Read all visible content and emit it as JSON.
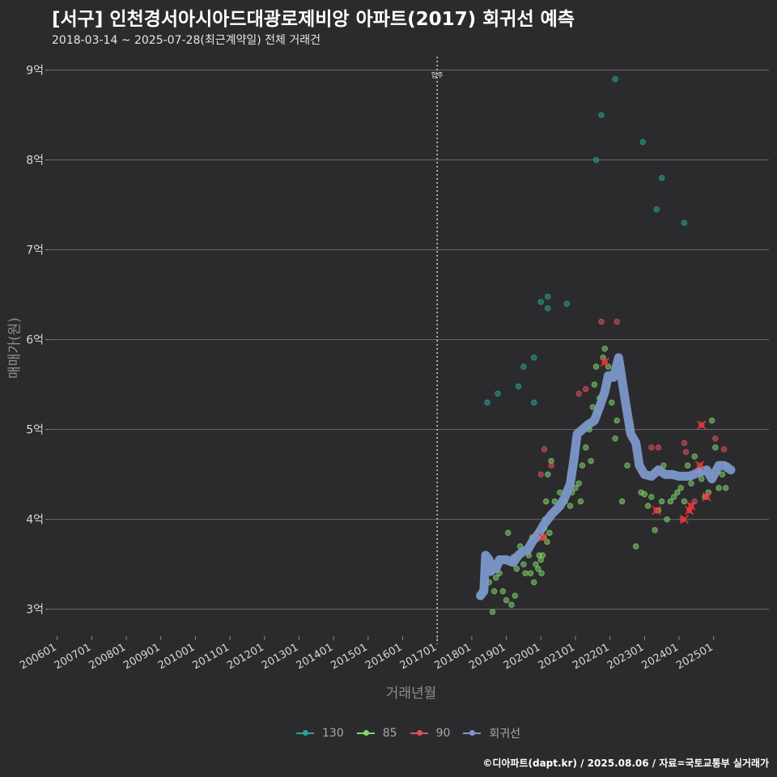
{
  "chart_data": {
    "type": "scatter",
    "title": "[서구] 인천경서아시아드대광로제비앙 아파트(2017) 회귀선 예측",
    "subtitle": "2018-03-14 ~ 2025-07-28(최근계약일) 전체 거래건",
    "xlabel": "거래년월",
    "ylabel": "매매가(원)",
    "footer": "©디아파트(dapt.kr) / 2025.08.06 / 자료=국토교통부 실거래가",
    "xlim": [
      2005.75,
      2026.6
    ],
    "ylim": [
      2.7,
      9.15
    ],
    "y_ticks": [
      {
        "value": 3,
        "label": "3억"
      },
      {
        "value": 4,
        "label": "4억"
      },
      {
        "value": 5,
        "label": "5억"
      },
      {
        "value": 6,
        "label": "6억"
      },
      {
        "value": 7,
        "label": "7억"
      },
      {
        "value": 8,
        "label": "8억"
      },
      {
        "value": 9,
        "label": "9억"
      }
    ],
    "x_ticks": [
      {
        "value": 2006,
        "label": "200601"
      },
      {
        "value": 2007,
        "label": "200701"
      },
      {
        "value": 2008,
        "label": "200801"
      },
      {
        "value": 2009,
        "label": "200901"
      },
      {
        "value": 2010,
        "label": "201001"
      },
      {
        "value": 2011,
        "label": "201101"
      },
      {
        "value": 2012,
        "label": "201201"
      },
      {
        "value": 2013,
        "label": "201301"
      },
      {
        "value": 2014,
        "label": "201401"
      },
      {
        "value": 2015,
        "label": "201501"
      },
      {
        "value": 2016,
        "label": "201601"
      },
      {
        "value": 2017,
        "label": "201701"
      },
      {
        "value": 2018,
        "label": "201801"
      },
      {
        "value": 2019,
        "label": "201901"
      },
      {
        "value": 2020,
        "label": "202001"
      },
      {
        "value": 2021,
        "label": "202101"
      },
      {
        "value": 2022,
        "label": "202201"
      },
      {
        "value": 2023,
        "label": "202301"
      },
      {
        "value": 2024,
        "label": "202401"
      },
      {
        "value": 2025,
        "label": "202501"
      }
    ],
    "annotation": {
      "x": 2017.0,
      "label": "입주"
    },
    "legend": [
      {
        "name": "130",
        "color": "#2aa198"
      },
      {
        "name": "85",
        "color": "#7fd46a"
      },
      {
        "name": "90",
        "color": "#e0505a"
      },
      {
        "name": "회귀선",
        "color": "#7b98c9"
      }
    ],
    "series": [
      {
        "name": "130",
        "color": "#2aa198",
        "points": [
          [
            2018.45,
            5.3
          ],
          [
            2018.75,
            5.4
          ],
          [
            2019.35,
            5.48
          ],
          [
            2019.5,
            5.7
          ],
          [
            2019.8,
            5.8
          ],
          [
            2019.8,
            5.3
          ],
          [
            2020.0,
            6.42
          ],
          [
            2020.2,
            6.48
          ],
          [
            2020.2,
            6.35
          ],
          [
            2020.75,
            6.4
          ],
          [
            2021.6,
            8.0
          ],
          [
            2021.75,
            8.5
          ],
          [
            2022.15,
            8.9
          ],
          [
            2022.95,
            8.2
          ],
          [
            2023.35,
            7.45
          ],
          [
            2023.5,
            7.8
          ],
          [
            2024.15,
            7.3
          ]
        ]
      },
      {
        "name": "85",
        "color": "#7fd46a",
        "points": [
          [
            2018.25,
            3.15
          ],
          [
            2018.3,
            3.2
          ],
          [
            2018.5,
            3.3
          ],
          [
            2018.6,
            2.97
          ],
          [
            2018.65,
            3.2
          ],
          [
            2018.7,
            3.35
          ],
          [
            2018.8,
            3.4
          ],
          [
            2018.9,
            3.2
          ],
          [
            2019.0,
            3.1
          ],
          [
            2019.05,
            3.85
          ],
          [
            2019.15,
            3.05
          ],
          [
            2019.2,
            3.58
          ],
          [
            2019.25,
            3.15
          ],
          [
            2019.3,
            3.45
          ],
          [
            2019.4,
            3.7
          ],
          [
            2019.5,
            3.5
          ],
          [
            2019.55,
            3.4
          ],
          [
            2019.65,
            3.6
          ],
          [
            2019.7,
            3.4
          ],
          [
            2019.75,
            3.8
          ],
          [
            2019.8,
            3.3
          ],
          [
            2019.85,
            3.5
          ],
          [
            2019.9,
            3.85
          ],
          [
            2019.92,
            3.45
          ],
          [
            2019.95,
            3.6
          ],
          [
            2020.0,
            3.55
          ],
          [
            2020.02,
            3.4
          ],
          [
            2020.05,
            3.6
          ],
          [
            2020.08,
            3.8
          ],
          [
            2020.1,
            3.9
          ],
          [
            2020.12,
            4.0
          ],
          [
            2020.15,
            4.2
          ],
          [
            2020.18,
            3.75
          ],
          [
            2020.2,
            4.5
          ],
          [
            2020.25,
            3.85
          ],
          [
            2020.3,
            4.65
          ],
          [
            2020.4,
            4.2
          ],
          [
            2020.55,
            4.3
          ],
          [
            2020.7,
            4.2
          ],
          [
            2020.85,
            4.15
          ],
          [
            2020.9,
            4.3
          ],
          [
            2021.0,
            4.35
          ],
          [
            2021.1,
            4.4
          ],
          [
            2021.15,
            4.2
          ],
          [
            2021.2,
            4.6
          ],
          [
            2021.3,
            4.8
          ],
          [
            2021.4,
            5.0
          ],
          [
            2021.45,
            4.65
          ],
          [
            2021.5,
            5.25
          ],
          [
            2021.55,
            5.5
          ],
          [
            2021.6,
            5.7
          ],
          [
            2021.65,
            5.2
          ],
          [
            2021.7,
            5.35
          ],
          [
            2021.8,
            5.8
          ],
          [
            2021.85,
            5.9
          ],
          [
            2021.95,
            5.7
          ],
          [
            2022.05,
            5.3
          ],
          [
            2022.15,
            4.9
          ],
          [
            2022.2,
            5.1
          ],
          [
            2022.35,
            4.2
          ],
          [
            2022.5,
            4.6
          ],
          [
            2022.75,
            3.7
          ],
          [
            2022.9,
            4.3
          ],
          [
            2023.0,
            4.28
          ],
          [
            2023.1,
            4.15
          ],
          [
            2023.2,
            4.25
          ],
          [
            2023.3,
            3.88
          ],
          [
            2023.4,
            4.1
          ],
          [
            2023.5,
            4.2
          ],
          [
            2023.55,
            4.6
          ],
          [
            2023.65,
            4.0
          ],
          [
            2023.75,
            4.2
          ],
          [
            2023.85,
            4.25
          ],
          [
            2023.95,
            4.3
          ],
          [
            2024.05,
            4.35
          ],
          [
            2024.15,
            4.2
          ],
          [
            2024.25,
            4.6
          ],
          [
            2024.35,
            4.4
          ],
          [
            2024.45,
            4.7
          ],
          [
            2024.55,
            4.55
          ],
          [
            2024.65,
            4.45
          ],
          [
            2024.75,
            4.25
          ],
          [
            2024.85,
            4.3
          ],
          [
            2024.95,
            5.1
          ],
          [
            2025.05,
            4.8
          ],
          [
            2025.15,
            4.35
          ],
          [
            2025.25,
            4.5
          ],
          [
            2025.35,
            4.35
          ],
          [
            2025.4,
            4.6
          ]
        ]
      },
      {
        "name": "90",
        "color": "#e0505a",
        "points": [
          [
            2018.35,
            3.25
          ],
          [
            2020.0,
            4.5
          ],
          [
            2020.05,
            3.8
          ],
          [
            2020.1,
            4.78
          ],
          [
            2020.3,
            4.6
          ],
          [
            2021.1,
            5.4
          ],
          [
            2021.3,
            5.45
          ],
          [
            2021.75,
            6.2
          ],
          [
            2021.85,
            5.75
          ],
          [
            2022.2,
            6.2
          ],
          [
            2023.2,
            4.8
          ],
          [
            2023.4,
            4.8
          ],
          [
            2023.35,
            4.1
          ],
          [
            2024.15,
            4.85
          ],
          [
            2024.2,
            4.75
          ],
          [
            2024.3,
            4.1
          ],
          [
            2024.35,
            4.15
          ],
          [
            2024.45,
            4.2
          ],
          [
            2024.6,
            4.6
          ],
          [
            2024.65,
            5.05
          ],
          [
            2024.8,
            4.25
          ],
          [
            2025.05,
            4.9
          ],
          [
            2025.3,
            4.78
          ],
          [
            2024.1,
            4.0
          ]
        ]
      }
    ],
    "regression": {
      "name": "회귀선",
      "color": "#7b98c9",
      "points": [
        [
          2018.25,
          3.15
        ],
        [
          2018.35,
          3.2
        ],
        [
          2018.4,
          3.6
        ],
        [
          2018.5,
          3.55
        ],
        [
          2018.55,
          3.42
        ],
        [
          2018.65,
          3.5
        ],
        [
          2018.7,
          3.45
        ],
        [
          2018.8,
          3.55
        ],
        [
          2019.0,
          3.55
        ],
        [
          2019.2,
          3.52
        ],
        [
          2019.35,
          3.6
        ],
        [
          2019.5,
          3.65
        ],
        [
          2019.6,
          3.65
        ],
        [
          2019.75,
          3.75
        ],
        [
          2019.85,
          3.8
        ],
        [
          2019.95,
          3.85
        ],
        [
          2020.1,
          3.95
        ],
        [
          2020.3,
          4.05
        ],
        [
          2020.55,
          4.15
        ],
        [
          2020.7,
          4.25
        ],
        [
          2020.85,
          4.4
        ],
        [
          2020.95,
          4.65
        ],
        [
          2021.05,
          4.95
        ],
        [
          2021.2,
          5.0
        ],
        [
          2021.35,
          5.05
        ],
        [
          2021.55,
          5.1
        ],
        [
          2021.7,
          5.25
        ],
        [
          2021.85,
          5.42
        ],
        [
          2021.95,
          5.6
        ],
        [
          2022.1,
          5.58
        ],
        [
          2022.25,
          5.8
        ],
        [
          2022.35,
          5.55
        ],
        [
          2022.45,
          5.3
        ],
        [
          2022.6,
          4.95
        ],
        [
          2022.75,
          4.85
        ],
        [
          2022.85,
          4.6
        ],
        [
          2023.0,
          4.5
        ],
        [
          2023.2,
          4.48
        ],
        [
          2023.4,
          4.55
        ],
        [
          2023.6,
          4.5
        ],
        [
          2023.8,
          4.5
        ],
        [
          2024.0,
          4.48
        ],
        [
          2024.3,
          4.48
        ],
        [
          2024.55,
          4.52
        ],
        [
          2024.8,
          4.55
        ],
        [
          2024.95,
          4.45
        ],
        [
          2025.15,
          4.6
        ],
        [
          2025.3,
          4.6
        ],
        [
          2025.5,
          4.55
        ]
      ]
    },
    "highlights": [
      [
        2020.05,
        3.8
      ],
      [
        2021.85,
        5.75
      ],
      [
        2023.35,
        4.1
      ],
      [
        2024.15,
        4.0
      ],
      [
        2024.3,
        4.1
      ],
      [
        2024.35,
        4.15
      ],
      [
        2024.6,
        4.6
      ],
      [
        2024.65,
        5.05
      ],
      [
        2024.8,
        4.25
      ]
    ],
    "highlight_color": "#ff3030"
  }
}
